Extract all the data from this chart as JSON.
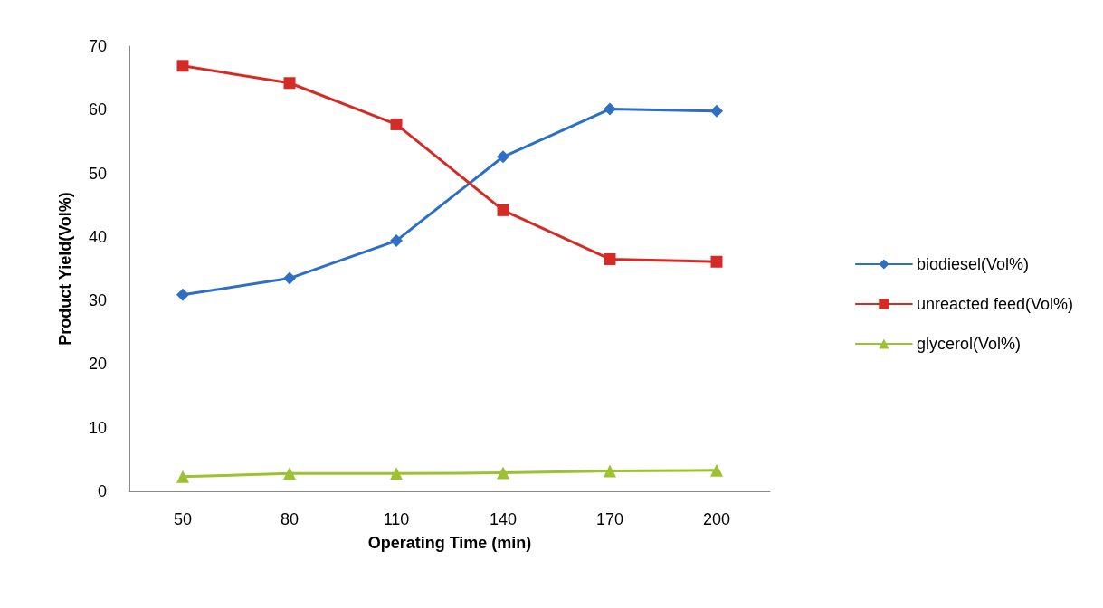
{
  "chart_data": {
    "type": "line",
    "xlabel": "Operating Time (min)",
    "ylabel": "Product Yield(Vol%)",
    "categories": [
      "50",
      "80",
      "110",
      "140",
      "170",
      "200"
    ],
    "series": [
      {
        "name": "biodiesel(Vol%)",
        "color": "#2e6fc4",
        "marker": "diamond",
        "values": [
          30.9,
          33.5,
          39.4,
          52.6,
          60.1,
          59.8
        ]
      },
      {
        "name": "unreacted feed(Vol%)",
        "color": "#d42b27",
        "marker": "square",
        "values": [
          66.9,
          64.2,
          57.7,
          44.2,
          36.5,
          36.1
        ]
      },
      {
        "name": "glycerol(Vol%)",
        "color": "#9cc232",
        "marker": "triangle",
        "values": [
          2.3,
          2.8,
          2.8,
          2.9,
          3.2,
          3.3
        ]
      }
    ],
    "ylim": [
      0,
      70
    ],
    "yticks": [
      0,
      10,
      20,
      30,
      40,
      50,
      60,
      70
    ],
    "grid": false,
    "legend": "right"
  }
}
